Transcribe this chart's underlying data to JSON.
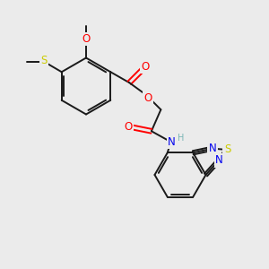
{
  "background_color": "#ebebeb",
  "bond_color": "#1a1a1a",
  "atom_colors": {
    "O": "#ff0000",
    "N": "#0000ee",
    "S_yellow": "#cccc00",
    "H": "#7ab5b5"
  },
  "font_size_atom": 8.5,
  "font_size_small": 7.0
}
